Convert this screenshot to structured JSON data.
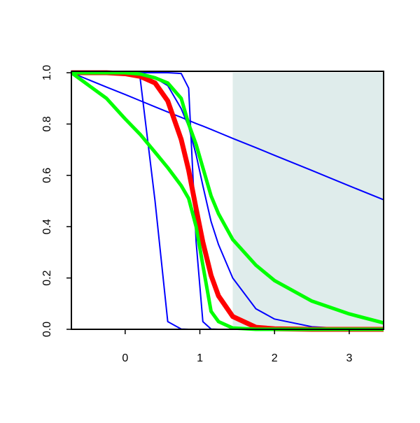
{
  "chart_data": {
    "type": "line",
    "x": [
      -0.72,
      -0.25,
      0,
      0.2,
      0.4,
      0.57,
      0.75,
      0.85,
      0.95,
      1.04,
      1.15,
      1.25,
      1.44,
      1.75,
      2,
      2.5,
      3,
      3.46
    ],
    "series": [
      {
        "color": "#0000ff",
        "lwd": 2,
        "values": [
          1,
          0.944,
          0.915,
          0.891,
          0.867,
          0.847,
          0.826,
          0.814,
          0.802,
          0.792,
          0.779,
          0.767,
          0.744,
          0.708,
          0.678,
          0.619,
          0.559,
          0.505
        ]
      },
      {
        "color": "#0000ff",
        "lwd": 2,
        "values": [
          1,
          1,
          1,
          0.98,
          0.5,
          0.03,
          0.001,
          0,
          0,
          0,
          0,
          0,
          0,
          0,
          0,
          0,
          0,
          0
        ]
      },
      {
        "color": "#0000ff",
        "lwd": 2,
        "values": [
          1,
          1,
          1,
          1,
          1,
          1,
          0.997,
          0.94,
          0.34,
          0.03,
          0.001,
          0,
          0,
          0,
          0,
          0,
          0,
          0
        ]
      },
      {
        "color": "#0000ff",
        "lwd": 2,
        "values": [
          1,
          1,
          0.999,
          0.995,
          0.98,
          0.95,
          0.86,
          0.79,
          0.68,
          0.56,
          0.42,
          0.33,
          0.2,
          0.08,
          0.04,
          0.01,
          0.002,
          0
        ]
      },
      {
        "color": "#ff0000",
        "lwd": 7,
        "values": [
          1,
          1,
          0.996,
          0.986,
          0.96,
          0.89,
          0.74,
          0.62,
          0.47,
          0.34,
          0.21,
          0.13,
          0.05,
          0.008,
          0.002,
          0,
          0,
          0
        ]
      },
      {
        "color": "#00ff00",
        "lwd": 5,
        "values": [
          1,
          0.9,
          0.82,
          0.76,
          0.69,
          0.63,
          0.56,
          0.51,
          0.4,
          0.25,
          0.07,
          0.03,
          0.005,
          0,
          0,
          0,
          0,
          0
        ]
      },
      {
        "color": "#00ff00",
        "lwd": 5,
        "values": [
          1,
          1,
          1,
          0.995,
          0.98,
          0.96,
          0.9,
          0.8,
          0.72,
          0.63,
          0.52,
          0.45,
          0.35,
          0.25,
          0.19,
          0.11,
          0.06,
          0.025
        ]
      }
    ],
    "shade": {
      "xlim": [
        1.44,
        3.46
      ],
      "color": "#dfeceb"
    },
    "xlim": [
      -0.72,
      3.46
    ],
    "ylim": [
      0,
      1
    ],
    "xticks": [
      0,
      1,
      2,
      3
    ],
    "yticks": [
      {
        "value": 0,
        "label": "0.0"
      },
      0.2,
      0.4,
      0.6,
      0.8,
      {
        "value": 1,
        "label": "1.0"
      }
    ]
  }
}
